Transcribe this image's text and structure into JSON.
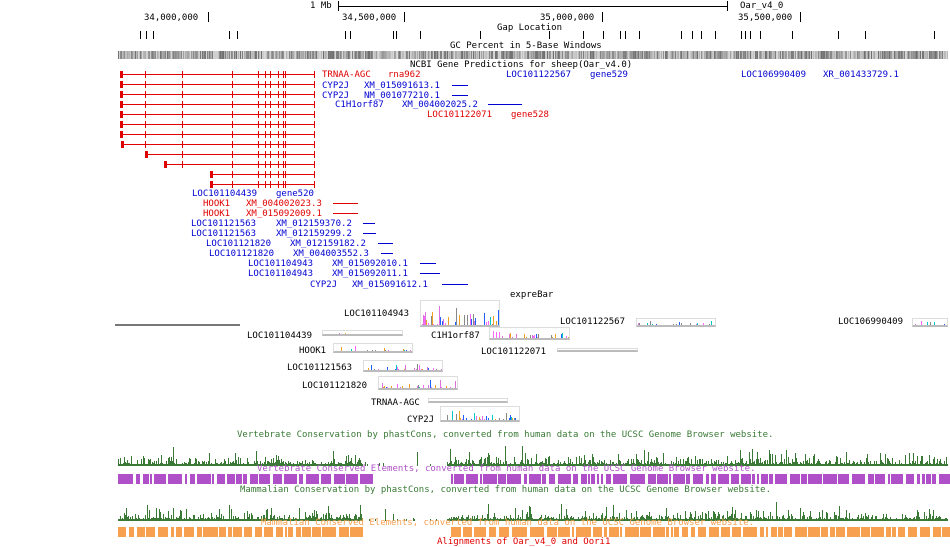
{
  "scale": {
    "length_label": "1 Mb",
    "assembly": "Oar_v4_0"
  },
  "ruler": {
    "ticks": [
      "34,000,000",
      "34,500,000",
      "35,000,000",
      "35,500,000"
    ]
  },
  "tracks": {
    "gap": {
      "title": "Gap Location"
    },
    "gc": {
      "title": "GC Percent in 5-Base Windows"
    },
    "genes": {
      "title": "NCBI Gene Predictions for sheep(Oar_v4.0)",
      "items": [
        {
          "name": "TRNAA-AGC",
          "id": "rna962",
          "color": "#e00000"
        },
        {
          "name": "LOC101122567",
          "id": "gene529",
          "color": "#0000d0"
        },
        {
          "name": "LOC106990409",
          "id": "XR_001433729.1",
          "color": "#0000d0"
        },
        {
          "name": "CYP2J",
          "id": "XM_015091613.1",
          "color": "#0000d0"
        },
        {
          "name": "CYP2J",
          "id": "NM_001077210.1",
          "color": "#0000d0"
        },
        {
          "name": "C1H1orf87",
          "id": "XM_004002025.2",
          "color": "#0000d0"
        },
        {
          "name": "LOC101122071",
          "id": "gene528",
          "color": "#e00000"
        },
        {
          "name": "LOC101104439",
          "id": "gene520",
          "color": "#0000d0"
        },
        {
          "name": "HOOK1",
          "id": "XM_004002023.3",
          "color": "#e00000"
        },
        {
          "name": "HOOK1",
          "id": "XM_015092009.1",
          "color": "#e00000"
        },
        {
          "name": "LOC101121563",
          "id": "XM_012159370.2",
          "color": "#0000d0"
        },
        {
          "name": "LOC101121563",
          "id": "XM_012159299.2",
          "color": "#0000d0"
        },
        {
          "name": "LOC101121820",
          "id": "XM_012159182.2",
          "color": "#0000d0"
        },
        {
          "name": "LOC101121820",
          "id": "XM_004003552.3",
          "color": "#0000d0"
        },
        {
          "name": "LOC101104943",
          "id": "XM_015092010.1",
          "color": "#0000d0"
        },
        {
          "name": "LOC101104943",
          "id": "XM_015092011.1",
          "color": "#0000d0"
        },
        {
          "name": "CYP2J",
          "id": "XM_015091612.1",
          "color": "#0000d0"
        }
      ]
    },
    "expre": {
      "title": "expreBar",
      "labels": [
        "LOC101104943",
        "LOC101122567",
        "LOC106990409",
        "LOC101104439",
        "C1H1orf87",
        "HOOK1",
        "LOC101122071",
        "LOC101121563",
        "LOC101121820",
        "TRNAA-AGC",
        "CYP2J"
      ]
    },
    "vert_cons": {
      "title": "Vertebrate Conservation by phastCons, converted from human data on the UCSC Genome Browser website.",
      "color": "#3a7a36"
    },
    "vert_elem": {
      "title": "Vertebrate Conserved Elements, converted from human data on the UCSC Genome Browser website.",
      "color": "#b050c8"
    },
    "mam_cons": {
      "title": "Mammalian Conservation by phastCons, converted from human data on the UCSC Genome Browser website.",
      "color": "#3a7a36"
    },
    "mam_elem": {
      "title": "Mammalian Conserved Elements, converted from human data on the UCSC Genome Browser website.",
      "color": "#f7a050"
    },
    "align": {
      "title": "Alignments of Oar_v4_0 and Oori1",
      "color": "#e00000"
    }
  }
}
